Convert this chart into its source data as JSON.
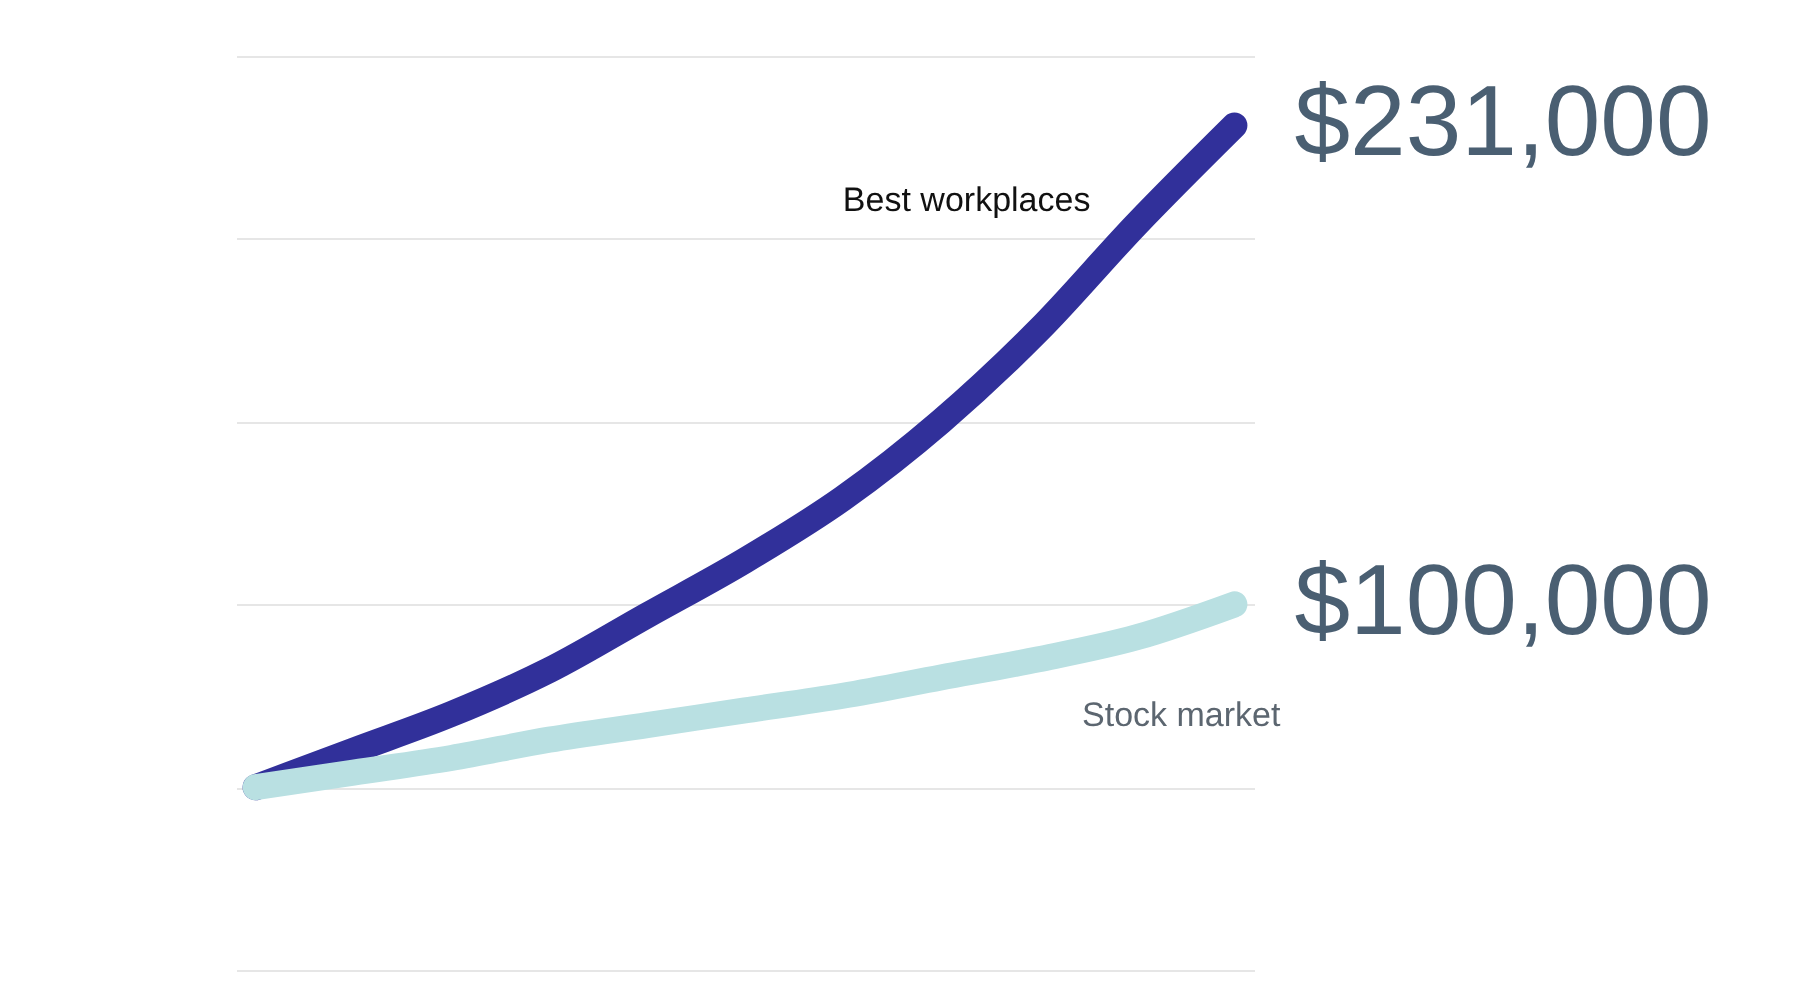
{
  "chart_data": {
    "type": "line",
    "categories": [
      null,
      null,
      null,
      null,
      null,
      null,
      null,
      null,
      null,
      null,
      null
    ],
    "series": [
      {
        "name": "Best workplaces",
        "color": "#31309a",
        "values": [
          50000,
          60000,
          70000,
          82000,
          97000,
          112000,
          129000,
          150000,
          175000,
          204000,
          231000
        ],
        "value_labels": [
          null,
          null,
          null,
          null,
          null,
          null,
          null,
          null,
          null,
          null,
          "$231,000"
        ]
      },
      {
        "name": "Stock market",
        "color": "#b9e0e2",
        "values": [
          50000,
          54000,
          58000,
          63000,
          67000,
          71000,
          75000,
          80000,
          85000,
          91000,
          100000
        ],
        "value_labels": [
          null,
          null,
          null,
          null,
          null,
          null,
          null,
          null,
          null,
          null,
          "$100,000"
        ]
      }
    ],
    "ylim": [
      0,
      250000
    ],
    "yticks": [
      {
        "value": 0,
        "label": null
      },
      {
        "value": 50000,
        "label": null
      },
      {
        "value": 100000,
        "label": null
      },
      {
        "value": 150000,
        "label": null
      },
      {
        "value": 200000,
        "label": null
      },
      {
        "value": 250000,
        "label": null
      }
    ],
    "grid": "y",
    "legend": false,
    "marker": "none",
    "line_style": "solid"
  }
}
